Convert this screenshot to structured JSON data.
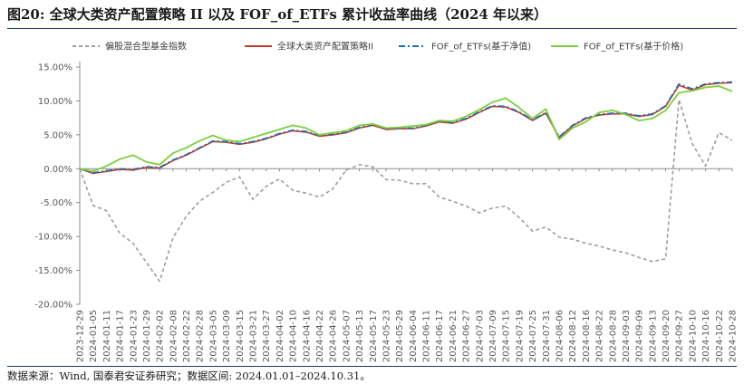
{
  "title": "图20:  全球大类资产配置策略 II 以及 FOF_of_ETFs 累计收益率曲线（2024 年以来）",
  "source": "数据来源：Wind, 国泰君安证券研究；数据区间: 2024.01.01–2024.10.31。",
  "chart_data": {
    "type": "line",
    "yticks": [
      "15.00%",
      "10.00%",
      "5.00%",
      "0.00%",
      "-5.00%",
      "-10.00%",
      "-15.00%",
      "-20.00%"
    ],
    "ytick_values": [
      15,
      10,
      5,
      0,
      -5,
      -10,
      -15,
      -20
    ],
    "ylim": [
      -20,
      15
    ],
    "y_unit": "%",
    "grid": false,
    "legend_position": "top",
    "x": [
      "2023-12-29",
      "2024-01-05",
      "2024-01-11",
      "2024-01-17",
      "2024-01-23",
      "2024-01-29",
      "2024-02-02",
      "2024-02-08",
      "2024-02-22",
      "2024-02-28",
      "2024-03-05",
      "2024-03-09",
      "2024-03-15",
      "2024-03-21",
      "2024-03-27",
      "2024-04-02",
      "2024-04-10",
      "2024-04-16",
      "2024-04-22",
      "2024-04-26",
      "2024-05-07",
      "2024-05-13",
      "2024-05-17",
      "2024-05-23",
      "2024-05-29",
      "2024-06-04",
      "2024-06-11",
      "2024-06-17",
      "2024-06-21",
      "2024-06-27",
      "2024-07-03",
      "2024-07-09",
      "2024-07-15",
      "2024-07-19",
      "2024-07-25",
      "2024-07-31",
      "2024-08-06",
      "2024-08-12",
      "2024-08-16",
      "2024-08-22",
      "2024-08-28",
      "2024-09-03",
      "2024-09-09",
      "2024-09-13",
      "2024-09-20",
      "2024-09-27",
      "2024-10-10",
      "2024-10-16",
      "2024-10-22",
      "2024-10-28"
    ],
    "series": [
      {
        "name": "偏股混合型基金指数",
        "color": "#9e9e9e",
        "dash": "dashed",
        "values": [
          0.0,
          -5.4,
          -6.2,
          -9.5,
          -11.0,
          -13.8,
          -16.6,
          -10.2,
          -7.0,
          -4.8,
          -3.5,
          -2.0,
          -1.2,
          -4.5,
          -2.6,
          -1.5,
          -3.2,
          -3.6,
          -4.2,
          -3.0,
          -0.2,
          0.6,
          0.3,
          -1.6,
          -1.7,
          -2.2,
          -2.2,
          -4.2,
          -4.8,
          -5.5,
          -6.5,
          -5.8,
          -5.5,
          -7.2,
          -9.2,
          -8.6,
          -10.1,
          -10.4,
          -11.0,
          -11.4,
          -12.0,
          -12.4,
          -13.1,
          -13.7,
          -13.3,
          10.2,
          3.7,
          0.4,
          5.3,
          4.2
        ]
      },
      {
        "name": "全球大类资产配置策略II",
        "color": "#c0392b",
        "dash": "solid",
        "values": [
          0.0,
          -0.7,
          -0.4,
          -0.1,
          -0.2,
          0.2,
          0.1,
          1.2,
          2.0,
          3.0,
          4.0,
          3.9,
          3.6,
          3.9,
          4.4,
          5.1,
          5.6,
          5.4,
          4.8,
          5.0,
          5.3,
          6.0,
          6.4,
          5.8,
          5.9,
          5.9,
          6.3,
          6.9,
          6.7,
          7.3,
          8.3,
          9.2,
          9.1,
          8.3,
          7.1,
          8.2,
          4.6,
          6.3,
          7.4,
          7.9,
          8.1,
          8.1,
          7.7,
          8.0,
          9.2,
          12.3,
          11.6,
          12.4,
          12.6,
          12.7
        ]
      },
      {
        "name": "FOF_of_ETFs(基于净值)",
        "color": "#1f6fb2",
        "dash": "dashdot",
        "values": [
          0.0,
          -0.6,
          -0.3,
          0.0,
          -0.1,
          0.3,
          0.2,
          1.3,
          2.1,
          3.1,
          4.1,
          4.0,
          3.7,
          4.0,
          4.5,
          5.2,
          5.7,
          5.5,
          4.9,
          5.1,
          5.4,
          6.1,
          6.5,
          5.9,
          6.0,
          6.0,
          6.4,
          7.0,
          6.8,
          7.4,
          8.4,
          9.3,
          9.2,
          8.4,
          7.2,
          8.3,
          4.7,
          6.4,
          7.5,
          8.0,
          8.2,
          8.2,
          7.8,
          8.1,
          9.3,
          12.5,
          11.8,
          12.5,
          12.7,
          12.8
        ]
      },
      {
        "name": "FOF_of_ETFs(基于价格)",
        "color": "#7ccf3a",
        "dash": "solid",
        "values": [
          0.0,
          -0.4,
          0.4,
          1.4,
          2.0,
          1.0,
          0.6,
          2.3,
          3.1,
          4.1,
          4.9,
          4.2,
          4.0,
          4.6,
          5.2,
          5.8,
          6.4,
          6.0,
          5.0,
          5.3,
          5.6,
          6.4,
          6.6,
          6.0,
          6.1,
          6.3,
          6.5,
          7.1,
          7.0,
          7.7,
          8.7,
          9.8,
          10.4,
          9.0,
          7.4,
          8.8,
          4.3,
          6.0,
          6.9,
          8.3,
          8.6,
          8.0,
          7.1,
          7.4,
          8.6,
          11.2,
          11.5,
          12.0,
          12.2,
          11.4
        ]
      }
    ]
  }
}
